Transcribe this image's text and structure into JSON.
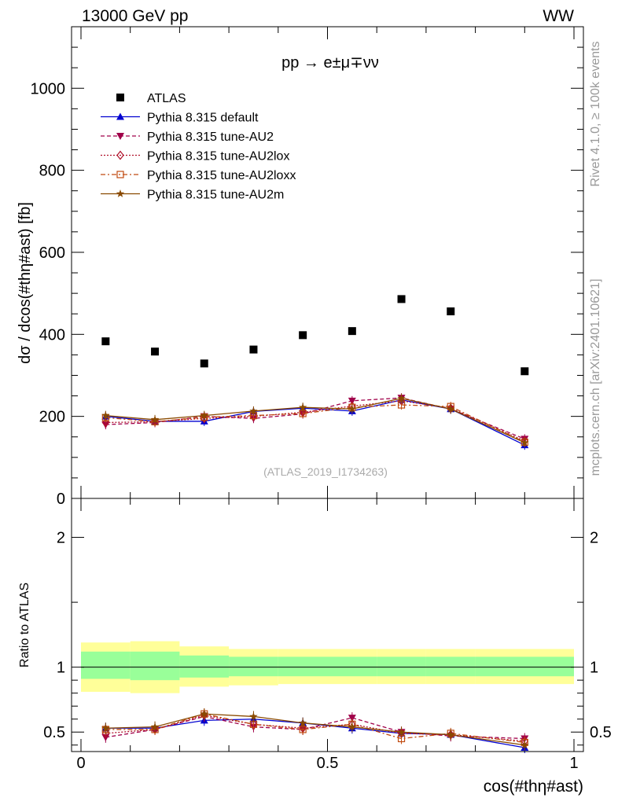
{
  "header": {
    "energy": "13000 GeV pp",
    "channel": "WW"
  },
  "side_labels": {
    "rivet": "Rivet 4.1.0, ≥ 100k events",
    "mcplots": "mcplots.cern.ch [arXiv:2401.10621]"
  },
  "colors": {
    "atlas": "#000000",
    "default": "#0000d0",
    "au2": "#a0004a",
    "au2lox": "#b0102a",
    "au2loxx": "#c04a10",
    "au2m": "#8a4a00",
    "band_outer": "#ffff99",
    "band_inner": "#99ff99"
  },
  "chart_data": [
    {
      "id": "main",
      "type": "scatter",
      "title": "pp → e±μ∓νν",
      "xlabel": "cos(#thη#ast)",
      "ylabel": "dσ / dcos(#thη#ast) [fb]",
      "xlim": [
        0,
        1
      ],
      "ylim": [
        0,
        1150
      ],
      "yticks": [
        0,
        200,
        400,
        600,
        800,
        1000
      ],
      "watermark": "(ATLAS_2019_I1734263)",
      "x": [
        0.05,
        0.15,
        0.25,
        0.35,
        0.45,
        0.55,
        0.65,
        0.75,
        0.9
      ],
      "bin_edges": [
        0,
        0.1,
        0.2,
        0.3,
        0.4,
        0.5,
        0.6,
        0.7,
        0.8,
        1.0
      ],
      "series": [
        {
          "name": "ATLAS",
          "key": "atlas",
          "marker": "square",
          "style": "none",
          "values": [
            383,
            358,
            329,
            363,
            398,
            408,
            486,
            456,
            310
          ]
        },
        {
          "name": "Pythia 8.315 default",
          "key": "default",
          "marker": "triangle-up",
          "style": "solid",
          "values": [
            200,
            188,
            188,
            212,
            220,
            213,
            240,
            218,
            130
          ]
        },
        {
          "name": "Pythia 8.315 tune-AU2",
          "key": "au2",
          "marker": "triangle-down",
          "style": "dashed",
          "values": [
            180,
            185,
            200,
            195,
            206,
            238,
            245,
            218,
            145
          ]
        },
        {
          "name": "Pythia 8.315 tune-AU2lox",
          "key": "au2lox",
          "marker": "diamond-open",
          "style": "dotted",
          "values": [
            185,
            187,
            195,
            200,
            210,
            225,
            238,
            220,
            140
          ]
        },
        {
          "name": "Pythia 8.315 tune-AU2loxx",
          "key": "au2loxx",
          "marker": "square-open",
          "style": "dashdot",
          "values": [
            197,
            187,
            198,
            202,
            207,
            222,
            228,
            224,
            137
          ]
        },
        {
          "name": "Pythia 8.315 tune-AU2m",
          "key": "au2m",
          "marker": "star",
          "style": "solid",
          "values": [
            202,
            192,
            202,
            213,
            222,
            218,
            244,
            218,
            136
          ]
        }
      ]
    },
    {
      "id": "ratio",
      "type": "scatter",
      "ylabel": "Ratio to ATLAS",
      "xlabel": "cos(#thη#ast)",
      "xlim": [
        0,
        1
      ],
      "ylim": [
        0.35,
        2.3
      ],
      "yticks": [
        0.5,
        1,
        2
      ],
      "ytick_labels": [
        "0.5",
        "1",
        "2"
      ],
      "xticks": [
        0,
        0.5,
        1
      ],
      "xtick_labels": [
        "0",
        "0.5",
        "1"
      ],
      "band_outer": [
        [
          0.81,
          1.19
        ],
        [
          0.8,
          1.2
        ],
        [
          0.85,
          1.16
        ],
        [
          0.86,
          1.14
        ],
        [
          0.87,
          1.14
        ],
        [
          0.87,
          1.14
        ],
        [
          0.87,
          1.14
        ],
        [
          0.87,
          1.14
        ],
        [
          0.87,
          1.14
        ]
      ],
      "band_inner": [
        [
          0.91,
          1.12
        ],
        [
          0.9,
          1.12
        ],
        [
          0.92,
          1.09
        ],
        [
          0.93,
          1.08
        ],
        [
          0.93,
          1.08
        ],
        [
          0.93,
          1.08
        ],
        [
          0.93,
          1.08
        ],
        [
          0.93,
          1.08
        ],
        [
          0.93,
          1.08
        ]
      ],
      "series": [
        {
          "key": "default",
          "values": [
            0.53,
            0.53,
            0.59,
            0.6,
            0.57,
            0.53,
            0.49,
            0.48,
            0.38
          ]
        },
        {
          "key": "au2",
          "values": [
            0.46,
            0.52,
            0.62,
            0.54,
            0.52,
            0.61,
            0.5,
            0.47,
            0.45
          ]
        },
        {
          "key": "au2lox",
          "values": [
            0.49,
            0.52,
            0.63,
            0.56,
            0.53,
            0.56,
            0.49,
            0.48,
            0.43
          ]
        },
        {
          "key": "au2loxx",
          "values": [
            0.52,
            0.52,
            0.64,
            0.56,
            0.52,
            0.56,
            0.45,
            0.49,
            0.42
          ]
        },
        {
          "key": "au2m",
          "values": [
            0.53,
            0.54,
            0.64,
            0.62,
            0.57,
            0.54,
            0.5,
            0.48,
            0.4
          ]
        }
      ]
    }
  ]
}
